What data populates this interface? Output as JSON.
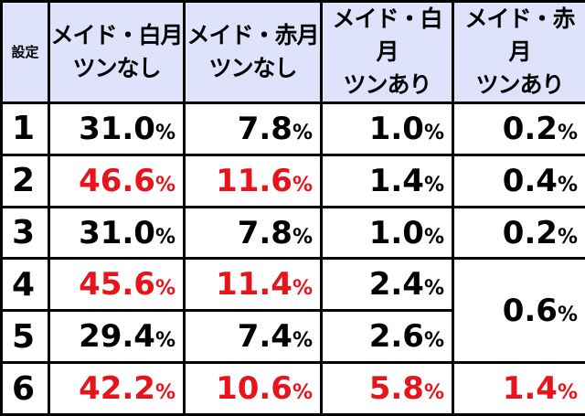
{
  "table": {
    "corner": "設定",
    "columns": [
      [
        "メイド・白月",
        "ツンなし"
      ],
      [
        "メイド・赤月",
        "ツンなし"
      ],
      [
        "メイド・白月",
        "ツンあり"
      ],
      [
        "メイド・赤月",
        "ツンあり"
      ]
    ],
    "header_color": "#dfe2fb",
    "highlight_color": "#e8141b",
    "rows": [
      {
        "setting": "1",
        "values": [
          "31.0%",
          "7.8%",
          "1.0%",
          "0.2%"
        ],
        "highlighted": [
          false,
          false,
          false,
          false
        ]
      },
      {
        "setting": "2",
        "values": [
          "46.6%",
          "11.6%",
          "1.4%",
          "0.4%"
        ],
        "highlighted": [
          true,
          true,
          false,
          false
        ]
      },
      {
        "setting": "3",
        "values": [
          "31.0%",
          "7.8%",
          "1.0%",
          "0.2%"
        ],
        "highlighted": [
          false,
          false,
          false,
          false
        ]
      },
      {
        "setting": "4",
        "values": [
          "45.6%",
          "11.4%",
          "2.4%",
          "0.6%"
        ],
        "highlighted": [
          true,
          true,
          false,
          false
        ],
        "last_spans": 2
      },
      {
        "setting": "5",
        "values": [
          "29.4%",
          "7.4%",
          "2.6%"
        ],
        "highlighted": [
          false,
          false,
          false
        ]
      },
      {
        "setting": "6",
        "values": [
          "42.2%",
          "10.6%",
          "5.8%",
          "1.4%"
        ],
        "highlighted": [
          true,
          true,
          true,
          true
        ]
      }
    ]
  }
}
